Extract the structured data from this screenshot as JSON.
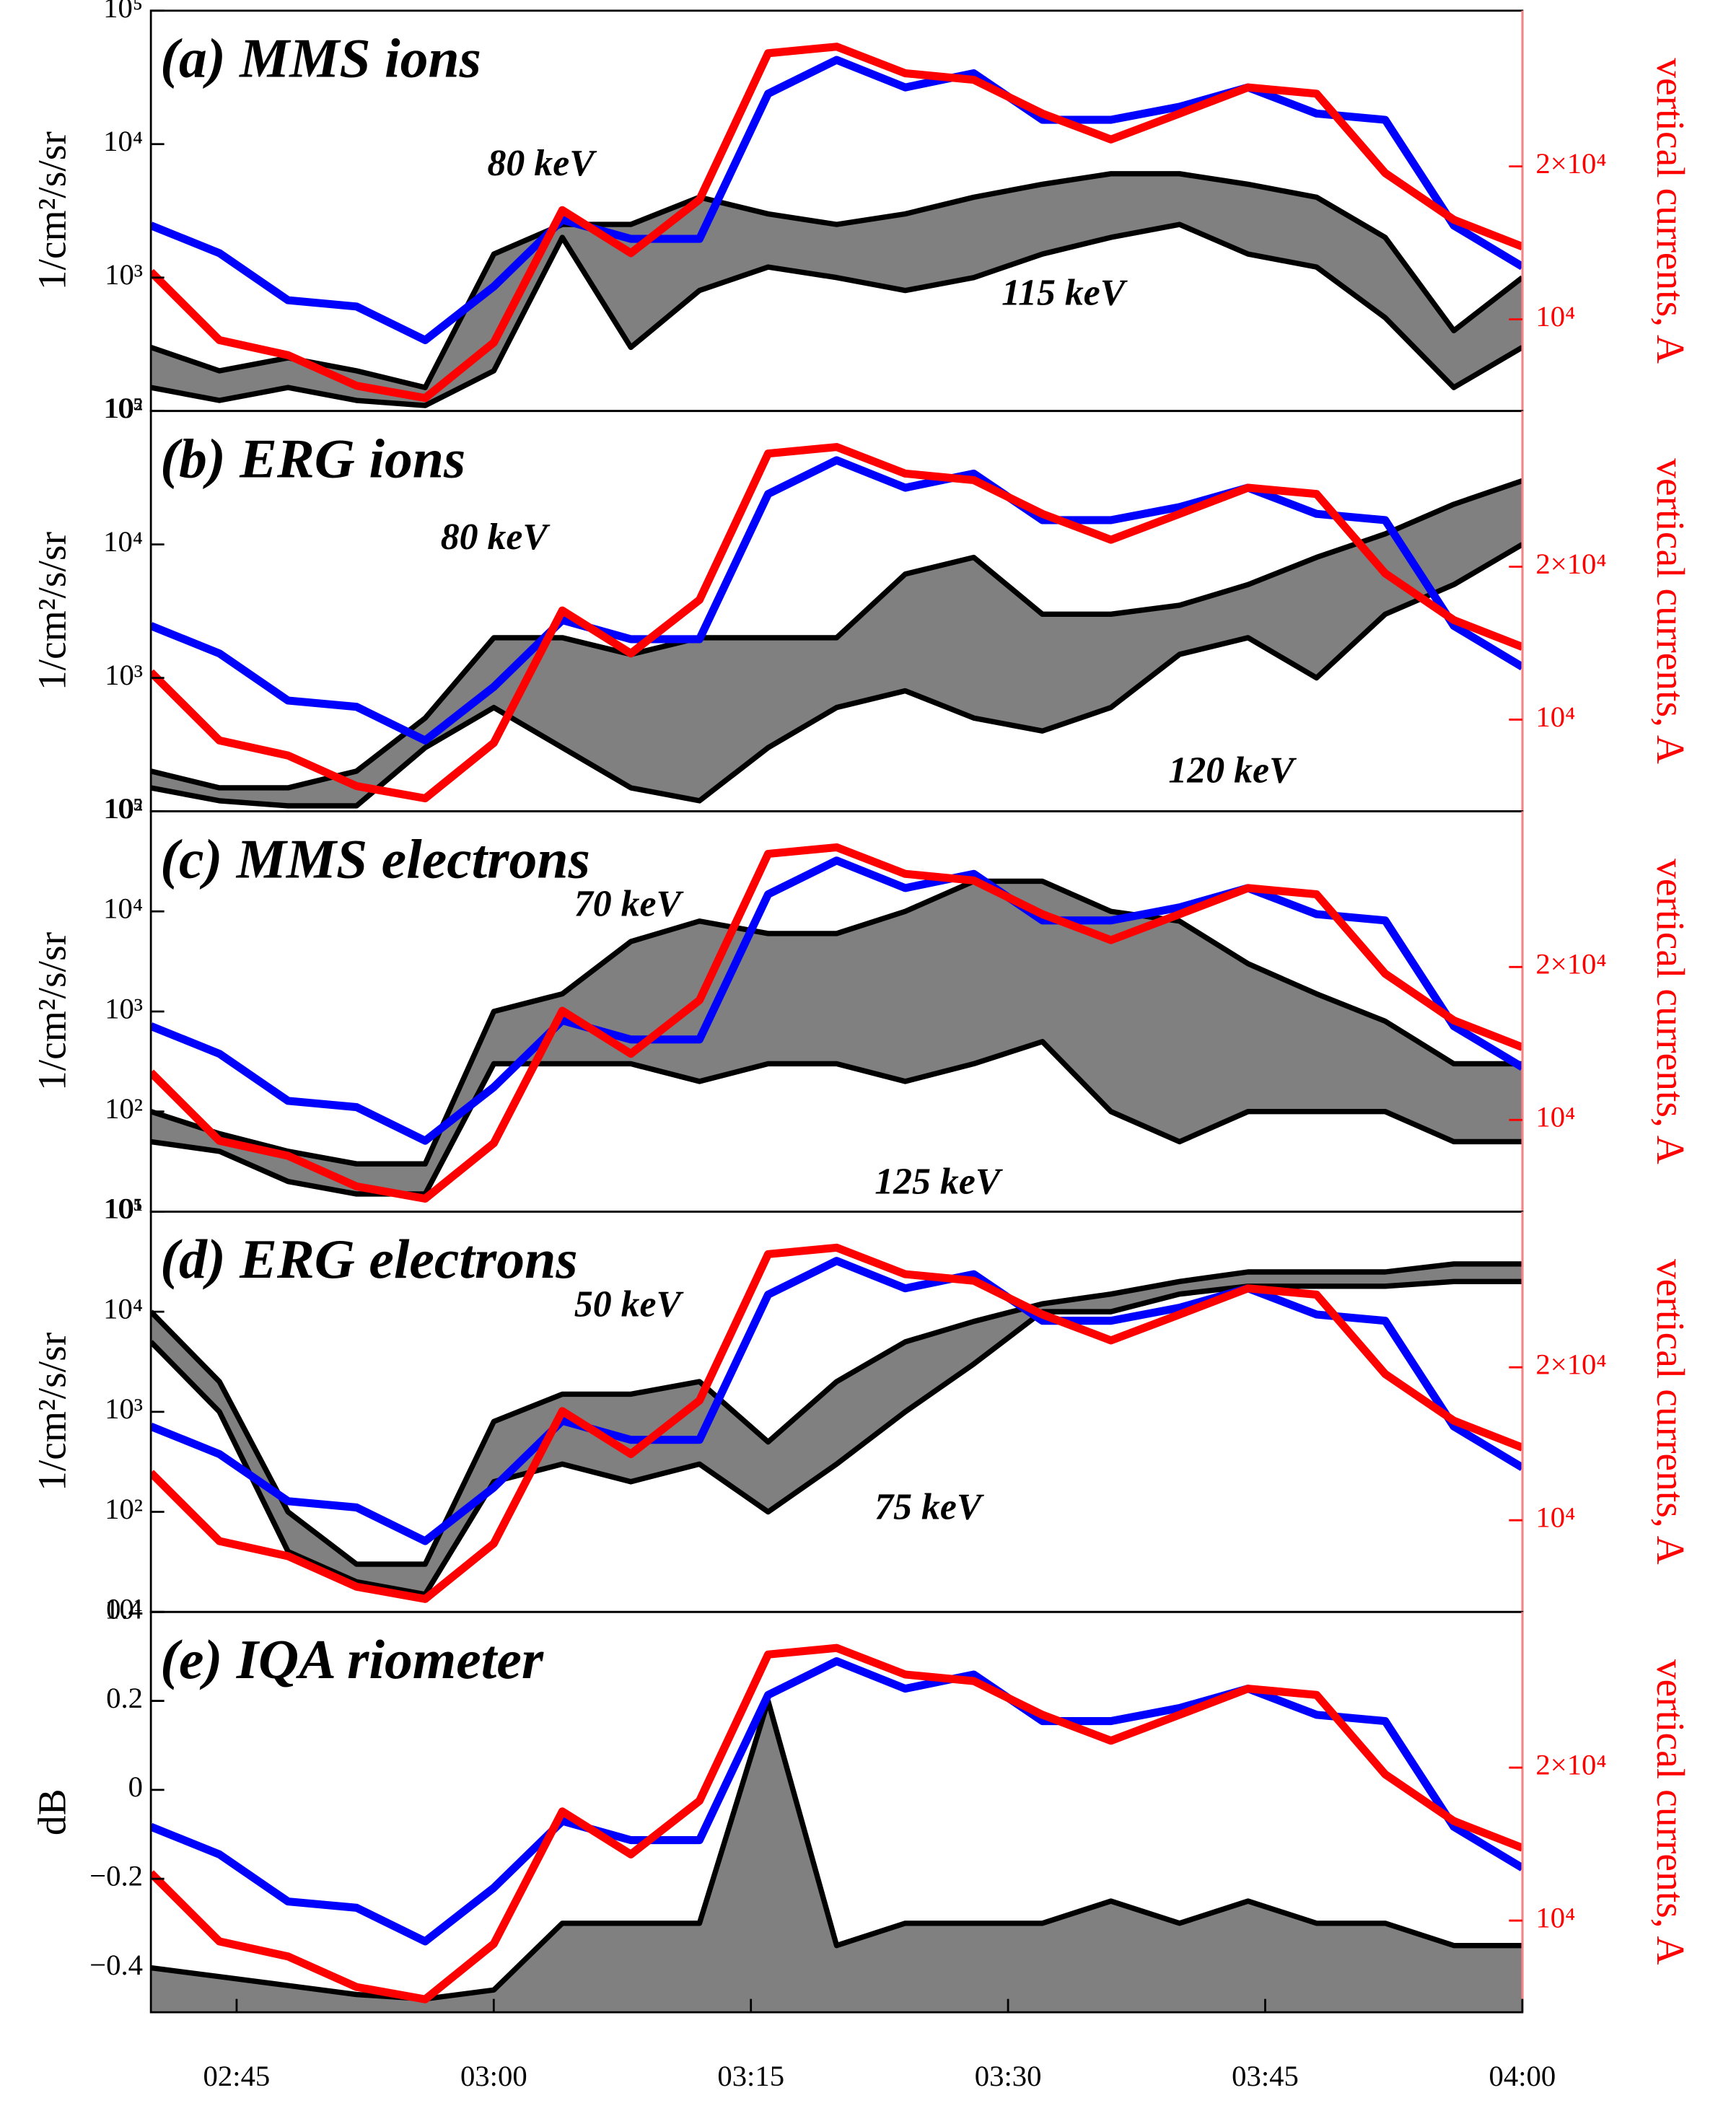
{
  "chart_data": [
    {
      "type": "band",
      "title": "(a) MMS ions",
      "ylabel": "1/cm²/s/sr",
      "y2label": "vertical currents, A",
      "x": [
        "02:40",
        "02:44",
        "02:48",
        "02:52",
        "02:56",
        "03:00",
        "03:04",
        "03:08",
        "03:12",
        "03:16",
        "03:20",
        "03:24",
        "03:28",
        "03:32",
        "03:36",
        "03:40",
        "03:44",
        "03:48",
        "03:52",
        "03:56",
        "04:00"
      ],
      "xlim": [
        "02:40",
        "04:00"
      ],
      "yscale": "log",
      "ylim": [
        100,
        100000
      ],
      "yticks": [
        {
          "value": 100,
          "label": "10²"
        },
        {
          "value": 1000,
          "label": "10³"
        },
        {
          "value": 10000,
          "label": "10⁴"
        },
        {
          "value": 100000,
          "label": "10⁵"
        }
      ],
      "y2scale": "log",
      "y2lim": [
        6600,
        40500
      ],
      "y2ticks": [
        {
          "value": 10000,
          "label": "10⁴"
        },
        {
          "value": 20000,
          "label": "2×10⁴"
        }
      ],
      "fill": "#808080",
      "series": [
        {
          "name": "80 keV",
          "color": "#000000",
          "values": [
            300,
            200,
            250,
            200,
            150,
            1500,
            2500,
            2500,
            4000,
            3000,
            2500,
            3000,
            4000,
            5000,
            6000,
            6000,
            5000,
            4000,
            2000,
            400,
            1000
          ]
        },
        {
          "name": "115 keV",
          "color": "#000000",
          "values": [
            150,
            120,
            150,
            120,
            110,
            200,
            2000,
            300,
            800,
            1200,
            1000,
            800,
            1000,
            1500,
            2000,
            2500,
            1500,
            1200,
            500,
            150,
            300
          ]
        },
        {
          "color": "#0000ff",
          "axis": "y2",
          "values": [
            15300,
            13500,
            10900,
            10600,
            9100,
            11600,
            15700,
            14400,
            14400,
            27800,
            32400,
            28600,
            30500,
            24700,
            24700,
            26200,
            28600,
            25400,
            24700,
            15300,
            12700
          ]
        },
        {
          "color": "#ff0000",
          "axis": "y2",
          "values": [
            12400,
            9100,
            8500,
            7400,
            7000,
            9000,
            16400,
            13500,
            17200,
            33400,
            34400,
            30500,
            29600,
            25400,
            22600,
            25400,
            28600,
            27800,
            19400,
            15700,
            13900
          ]
        }
      ]
    },
    {
      "type": "band",
      "title": "(b) ERG ions",
      "ylabel": "1/cm²/s/sr",
      "y2label": "vertical currents, A",
      "x": [
        "02:40",
        "02:44",
        "02:48",
        "02:52",
        "02:56",
        "03:00",
        "03:04",
        "03:08",
        "03:12",
        "03:16",
        "03:20",
        "03:24",
        "03:28",
        "03:32",
        "03:36",
        "03:40",
        "03:44",
        "03:48",
        "03:52",
        "03:56",
        "04:00"
      ],
      "xlim": [
        "02:40",
        "04:00"
      ],
      "yscale": "log",
      "ylim": [
        100,
        100000
      ],
      "yticks": [
        {
          "value": 100,
          "label": "10²"
        },
        {
          "value": 1000,
          "label": "10³"
        },
        {
          "value": 10000,
          "label": "10⁴"
        },
        {
          "value": 100000,
          "label": "10⁵"
        }
      ],
      "y2scale": "log",
      "y2lim": [
        6600,
        40500
      ],
      "y2ticks": [
        {
          "value": 10000,
          "label": "10⁴"
        },
        {
          "value": 20000,
          "label": "2×10⁴"
        }
      ],
      "fill": "#808080",
      "series": [
        {
          "name": "80 keV",
          "color": "#000000",
          "values": [
            200,
            150,
            150,
            200,
            500,
            2000,
            2000,
            1500,
            2000,
            2000,
            2000,
            6000,
            8000,
            3000,
            3000,
            3500,
            5000,
            8000,
            12000,
            20000,
            30000
          ]
        },
        {
          "name": "120 keV",
          "color": "#000000",
          "values": [
            150,
            120,
            110,
            110,
            300,
            600,
            300,
            150,
            120,
            300,
            600,
            800,
            500,
            400,
            600,
            1500,
            2000,
            1000,
            3000,
            5000,
            10000
          ]
        },
        {
          "color": "#0000ff",
          "axis": "y2",
          "values": [
            15300,
            13500,
            10900,
            10600,
            9100,
            11600,
            15700,
            14400,
            14400,
            27800,
            32400,
            28600,
            30500,
            24700,
            24700,
            26200,
            28600,
            25400,
            24700,
            15300,
            12700
          ]
        },
        {
          "color": "#ff0000",
          "axis": "y2",
          "values": [
            12400,
            9100,
            8500,
            7400,
            7000,
            9000,
            16400,
            13500,
            17200,
            33400,
            34400,
            30500,
            29600,
            25400,
            22600,
            25400,
            28600,
            27800,
            19400,
            15700,
            13900
          ]
        }
      ]
    },
    {
      "type": "band",
      "title": "(c) MMS electrons",
      "ylabel": "1/cm²/s/sr",
      "y2label": "vertical currents, A",
      "x": [
        "02:40",
        "02:44",
        "02:48",
        "02:52",
        "02:56",
        "03:00",
        "03:04",
        "03:08",
        "03:12",
        "03:16",
        "03:20",
        "03:24",
        "03:28",
        "03:32",
        "03:36",
        "03:40",
        "03:44",
        "03:48",
        "03:52",
        "03:56",
        "04:00"
      ],
      "xlim": [
        "02:40",
        "04:00"
      ],
      "yscale": "log",
      "ylim": [
        10,
        100000
      ],
      "yticks": [
        {
          "value": 10,
          "label": "10¹"
        },
        {
          "value": 100,
          "label": "10²"
        },
        {
          "value": 1000,
          "label": "10³"
        },
        {
          "value": 10000,
          "label": "10⁴"
        },
        {
          "value": 100000,
          "label": "10⁵"
        }
      ],
      "y2scale": "log",
      "y2lim": [
        6600,
        40500
      ],
      "y2ticks": [
        {
          "value": 10000,
          "label": "10⁴"
        },
        {
          "value": 20000,
          "label": "2×10⁴"
        }
      ],
      "fill": "#808080",
      "series": [
        {
          "name": "70 keV",
          "color": "#000000",
          "values": [
            100,
            60,
            40,
            30,
            30,
            1000,
            1500,
            5000,
            8000,
            6000,
            6000,
            10000,
            20000,
            20000,
            10000,
            8000,
            3000,
            1500,
            800,
            300,
            300
          ]
        },
        {
          "name": "125 keV",
          "color": "#000000",
          "values": [
            50,
            40,
            20,
            15,
            15,
            300,
            300,
            300,
            200,
            300,
            300,
            200,
            300,
            500,
            100,
            50,
            100,
            100,
            100,
            50,
            50
          ]
        },
        {
          "color": "#0000ff",
          "axis": "y2",
          "values": [
            15300,
            13500,
            10900,
            10600,
            9100,
            11600,
            15700,
            14400,
            14400,
            27800,
            32400,
            28600,
            30500,
            24700,
            24700,
            26200,
            28600,
            25400,
            24700,
            15300,
            12700
          ]
        },
        {
          "color": "#ff0000",
          "axis": "y2",
          "values": [
            12400,
            9100,
            8500,
            7400,
            7000,
            9000,
            16400,
            13500,
            17200,
            33400,
            34400,
            30500,
            29600,
            25400,
            22600,
            25400,
            28600,
            27800,
            19400,
            15700,
            13900
          ]
        }
      ]
    },
    {
      "type": "band",
      "title": "(d) ERG electrons",
      "ylabel": "1/cm²/s/sr",
      "y2label": "vertical currents, A",
      "x": [
        "02:40",
        "02:44",
        "02:48",
        "02:52",
        "02:56",
        "03:00",
        "03:04",
        "03:08",
        "03:12",
        "03:16",
        "03:20",
        "03:24",
        "03:28",
        "03:32",
        "03:36",
        "03:40",
        "03:44",
        "03:48",
        "03:52",
        "03:56",
        "04:00"
      ],
      "xlim": [
        "02:40",
        "04:00"
      ],
      "yscale": "log",
      "ylim": [
        10,
        100000
      ],
      "yticks": [
        {
          "value": 10,
          "label": "10¹"
        },
        {
          "value": 100,
          "label": "10²"
        },
        {
          "value": 1000,
          "label": "10³"
        },
        {
          "value": 10000,
          "label": "10⁴"
        },
        {
          "value": 100000,
          "label": "10⁵"
        }
      ],
      "y2scale": "log",
      "y2lim": [
        6600,
        40500
      ],
      "y2ticks": [
        {
          "value": 10000,
          "label": "10⁴"
        },
        {
          "value": 20000,
          "label": "2×10⁴"
        }
      ],
      "fill": "#808080",
      "series": [
        {
          "name": "50 keV",
          "color": "#000000",
          "values": [
            10000,
            2000,
            100,
            30,
            30,
            800,
            1500,
            1500,
            2000,
            500,
            2000,
            5000,
            8000,
            12000,
            15000,
            20000,
            25000,
            25000,
            25000,
            30000,
            30000
          ]
        },
        {
          "name": "75 keV",
          "color": "#000000",
          "values": [
            5000,
            1000,
            40,
            20,
            15,
            200,
            300,
            200,
            300,
            100,
            300,
            1000,
            3000,
            10000,
            10000,
            15000,
            18000,
            18000,
            18000,
            20000,
            20000
          ]
        },
        {
          "color": "#0000ff",
          "axis": "y2",
          "values": [
            15300,
            13500,
            10900,
            10600,
            9100,
            11600,
            15700,
            14400,
            14400,
            27800,
            32400,
            28600,
            30500,
            24700,
            24700,
            26200,
            28600,
            25400,
            24700,
            15300,
            12700
          ]
        },
        {
          "color": "#ff0000",
          "axis": "y2",
          "values": [
            12400,
            9100,
            8500,
            7400,
            7000,
            9000,
            16400,
            13500,
            17200,
            33400,
            34400,
            30500,
            29600,
            25400,
            22600,
            25400,
            28600,
            27800,
            19400,
            15700,
            13900
          ]
        }
      ]
    },
    {
      "type": "area",
      "title": "(e) IQA riometer",
      "ylabel": "dB",
      "y2label": "vertical currents, A",
      "x": [
        "02:40",
        "02:44",
        "02:48",
        "02:52",
        "02:56",
        "03:00",
        "03:04",
        "03:08",
        "03:12",
        "03:16",
        "03:20",
        "03:24",
        "03:28",
        "03:32",
        "03:36",
        "03:40",
        "03:44",
        "03:48",
        "03:52",
        "03:56",
        "04:00"
      ],
      "xlim": [
        "02:40",
        "04:00"
      ],
      "xticks": [
        "02:45",
        "03:00",
        "03:15",
        "03:30",
        "03:45",
        "04:00"
      ],
      "ylim": [
        -0.5,
        0.4
      ],
      "yticks": [
        {
          "value": -0.4,
          "label": "−0.4"
        },
        {
          "value": -0.2,
          "label": "−0.2"
        },
        0,
        0.2,
        0.4
      ],
      "y2scale": "log",
      "y2lim": [
        6600,
        40500
      ],
      "y2ticks": [
        {
          "value": 10000,
          "label": "10⁴"
        },
        {
          "value": 20000,
          "label": "2×10⁴"
        }
      ],
      "fill": "#808080",
      "series": [
        {
          "color": "#000000",
          "values": [
            -0.4,
            -0.42,
            -0.44,
            -0.46,
            -0.47,
            -0.45,
            -0.3,
            -0.3,
            -0.3,
            0.2,
            -0.35,
            -0.3,
            -0.3,
            -0.3,
            -0.25,
            -0.3,
            -0.25,
            -0.3,
            -0.3,
            -0.35,
            -0.35
          ]
        },
        {
          "color": "#0000ff",
          "axis": "y2",
          "values": [
            15300,
            13500,
            10900,
            10600,
            9100,
            11600,
            15700,
            14400,
            14400,
            27800,
            32400,
            28600,
            30500,
            24700,
            24700,
            26200,
            28600,
            25400,
            24700,
            15300,
            12700
          ]
        },
        {
          "color": "#ff0000",
          "axis": "y2",
          "values": [
            12400,
            9100,
            8500,
            7400,
            7000,
            9000,
            16400,
            13500,
            17200,
            33400,
            34400,
            30500,
            29600,
            25400,
            22600,
            25400,
            28600,
            27800,
            19400,
            15700,
            13900
          ]
        }
      ]
    }
  ]
}
